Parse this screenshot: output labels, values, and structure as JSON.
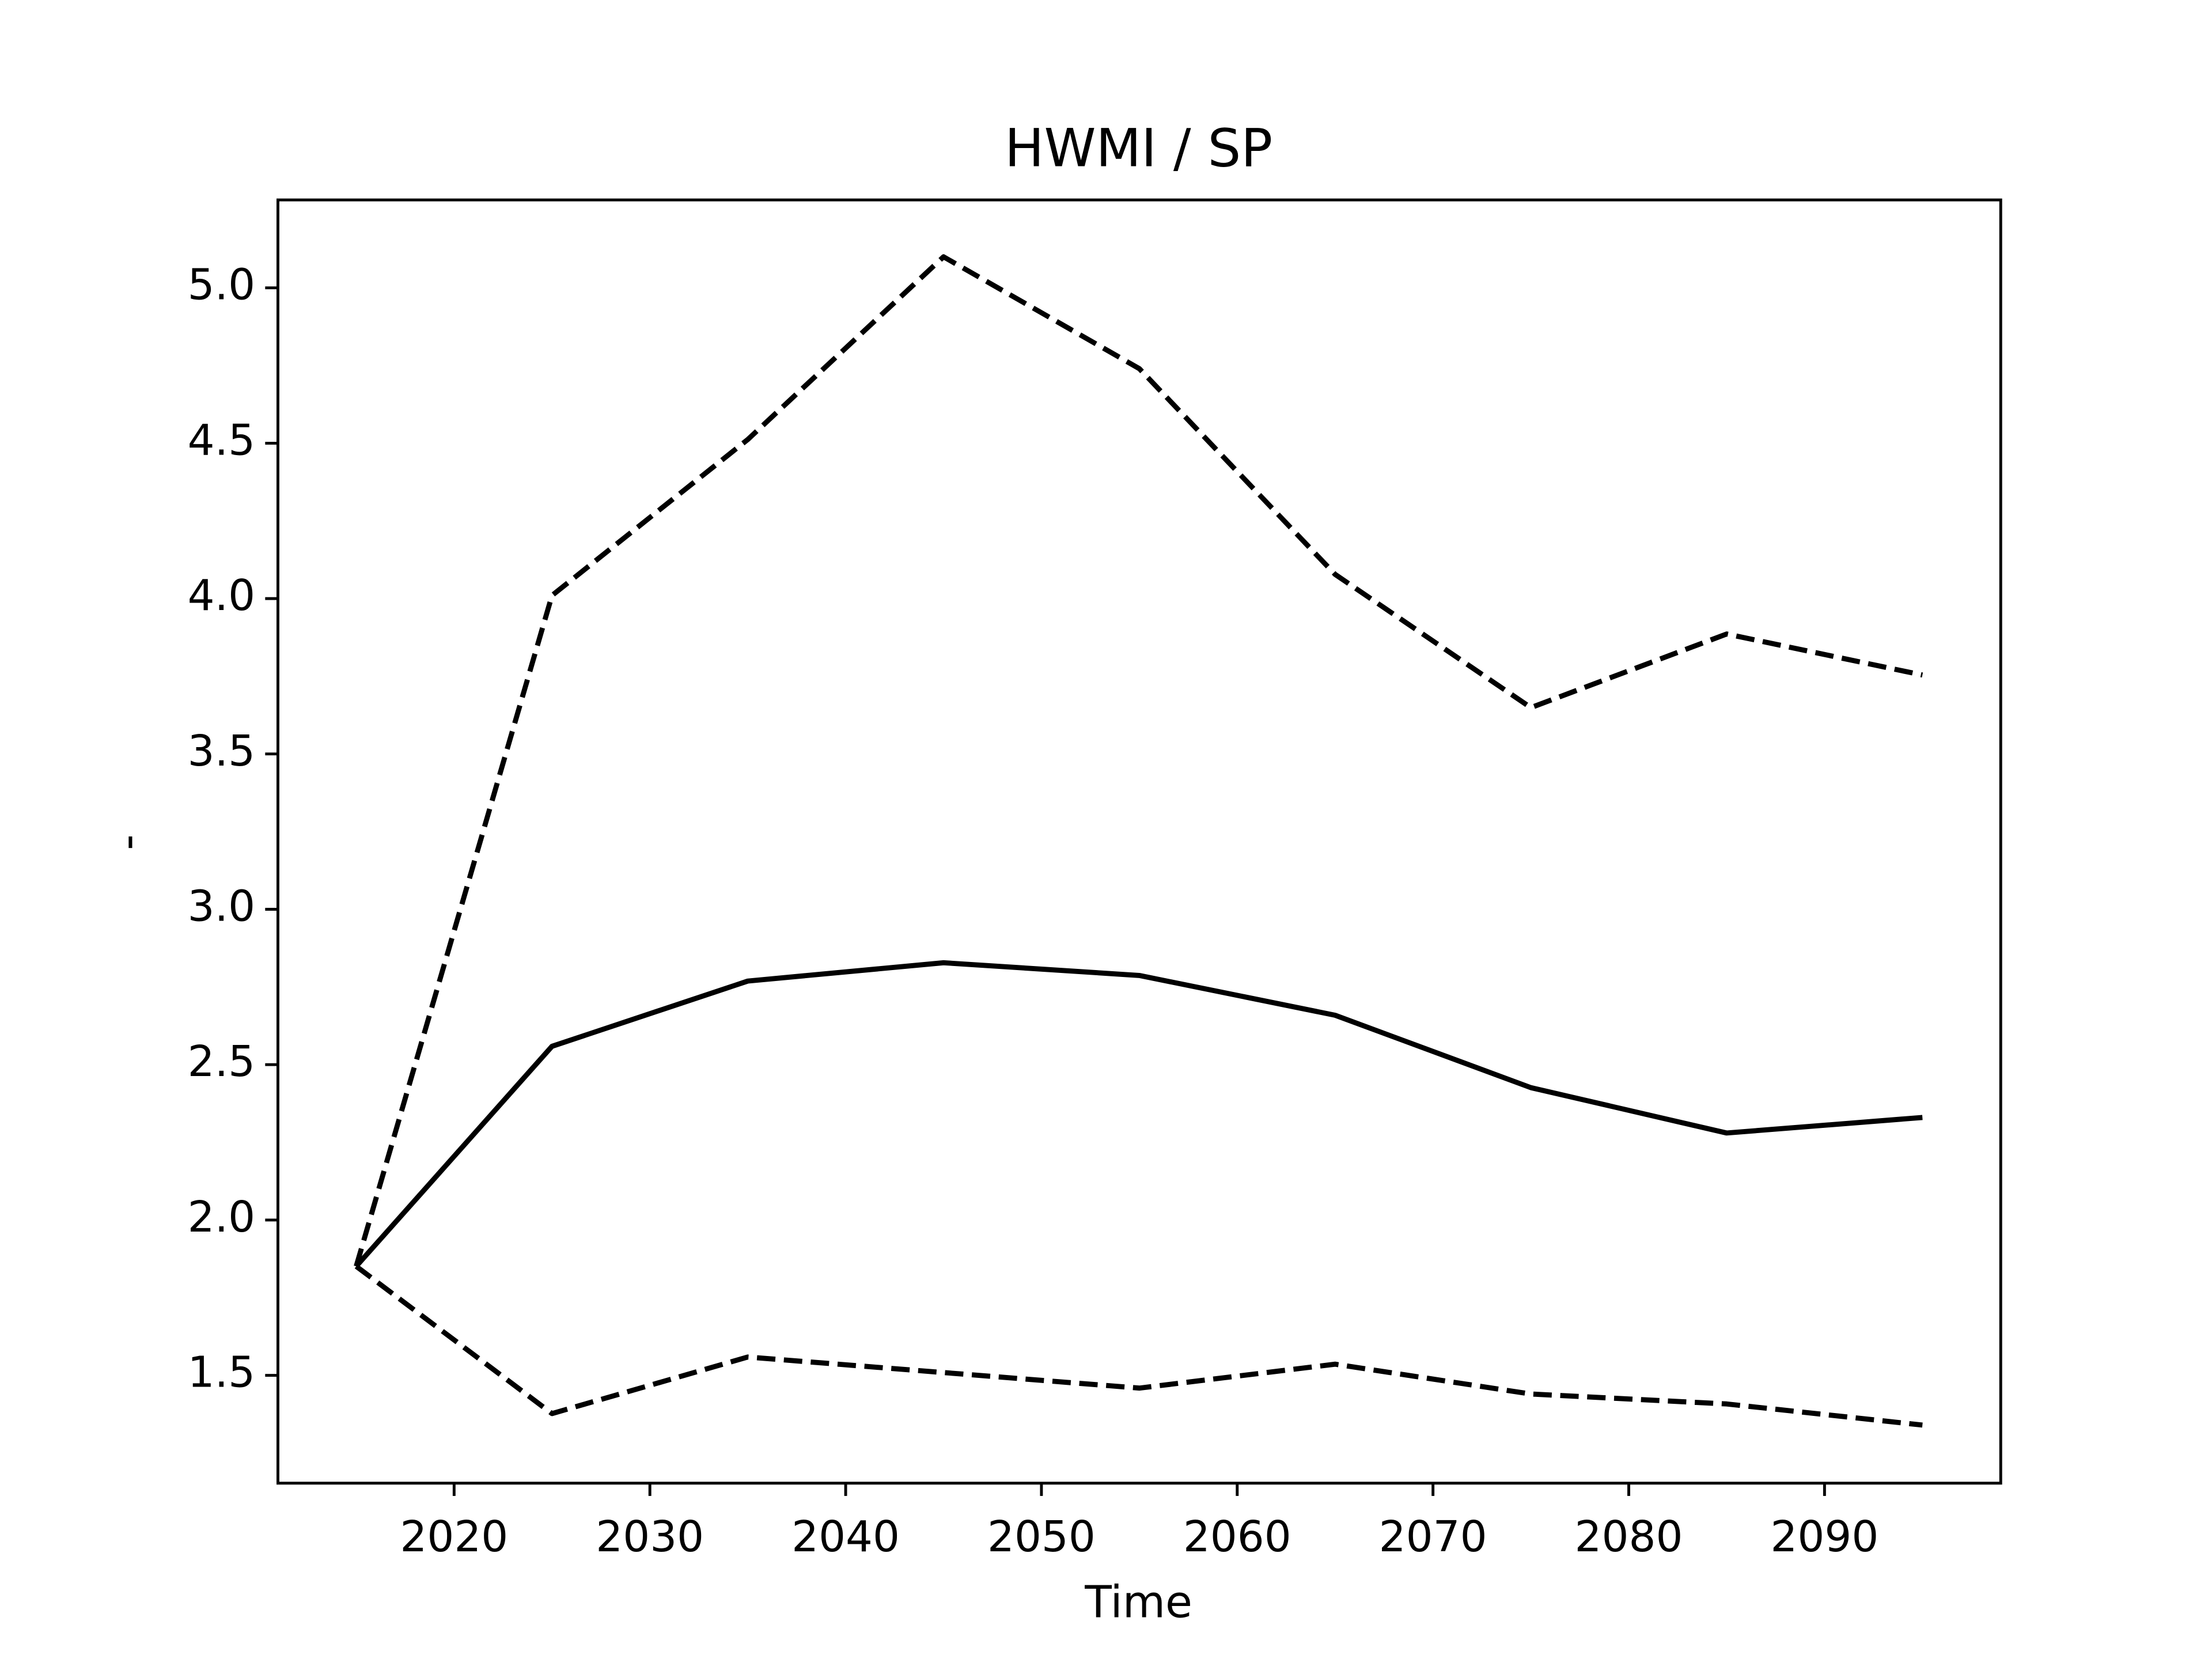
{
  "chart_data": {
    "type": "line",
    "title": "HWMI / SP",
    "xlabel": "Time",
    "ylabel": "-",
    "x": [
      2015,
      2025,
      2035,
      2045,
      2055,
      2065,
      2075,
      2085,
      2095
    ],
    "series": [
      {
        "color": "#000000",
        "dashed": false,
        "values": [
          1.851,
          2.559,
          2.769,
          2.828,
          2.787,
          2.659,
          2.426,
          2.28,
          2.33
        ]
      },
      {
        "color": "#000000",
        "dashed": true,
        "values": [
          1.851,
          4.01,
          4.512,
          5.1,
          4.74,
          4.078,
          3.649,
          3.886,
          3.754
        ]
      },
      {
        "color": "#000000",
        "dashed": true,
        "values": [
          1.851,
          1.377,
          1.559,
          1.509,
          1.459,
          1.536,
          1.44,
          1.408,
          1.34
        ]
      }
    ],
    "xlim": [
      2011,
      2099
    ],
    "xticks": [
      2020,
      2030,
      2040,
      2050,
      2060,
      2070,
      2080,
      2090
    ],
    "ylim": [
      1.153,
      5.283
    ],
    "yticks": [
      1.5,
      {
        "value": 2,
        "label": "2.0"
      },
      2.5,
      {
        "value": 3,
        "label": "3.0"
      },
      3.5,
      {
        "value": 4,
        "label": "4.0"
      },
      4.5,
      {
        "value": 5,
        "label": "5.0"
      }
    ],
    "grid": false
  }
}
